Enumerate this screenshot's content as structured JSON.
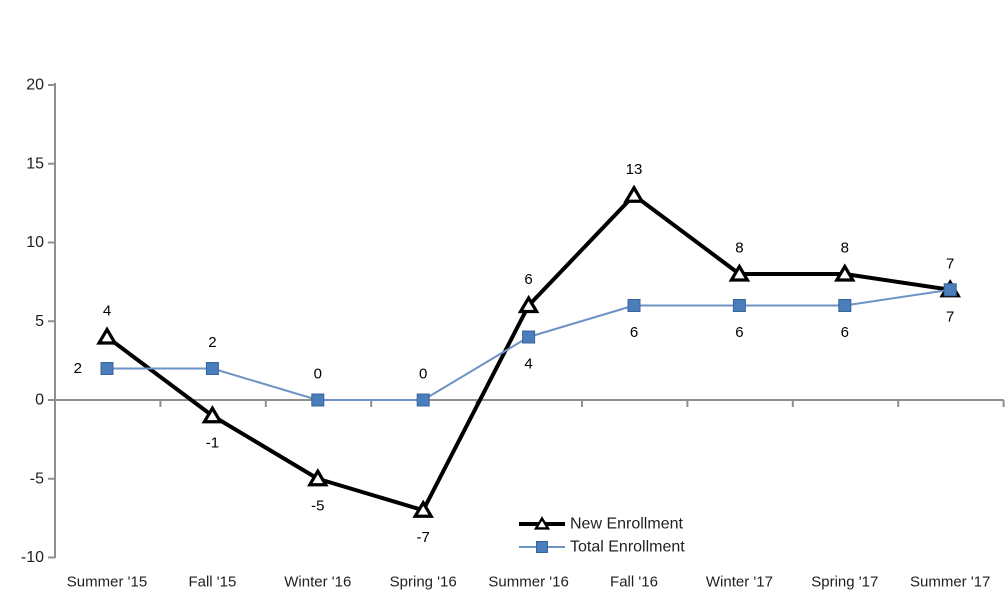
{
  "chart_data": {
    "type": "line",
    "categories": [
      "Summer '15",
      "Fall '15",
      "Winter '16",
      "Spring '16",
      "Summer '16",
      "Fall '16",
      "Winter '17",
      "Spring '17",
      "Summer '17"
    ],
    "series": [
      {
        "name": "New Enrollment",
        "values": [
          4,
          -1,
          -5,
          -7,
          6,
          13,
          8,
          8,
          7
        ],
        "data_labels": [
          "4",
          "-1",
          "-5",
          "-7",
          "6",
          "13",
          "8",
          "8",
          "7"
        ],
        "label_positions": [
          "above",
          "below",
          "below",
          "below",
          "above",
          "above",
          "above",
          "above",
          "above"
        ],
        "line_color": "#000000",
        "line_width": 4,
        "marker": "triangle",
        "marker_fill": "#ffffff",
        "marker_stroke": "#000000"
      },
      {
        "name": "Total Enrollment",
        "values": [
          2,
          2,
          0,
          0,
          4,
          6,
          6,
          6,
          7
        ],
        "data_labels": [
          "2",
          "2",
          "0",
          "0",
          "4",
          "6",
          "6",
          "6",
          "7"
        ],
        "label_positions": [
          "left",
          "above",
          "above",
          "above",
          "below",
          "below",
          "below",
          "below",
          "below"
        ],
        "line_color": "#6d92c4",
        "line_width": 2,
        "marker": "square",
        "marker_fill": "#4a7ebb",
        "marker_stroke": "#38639d"
      }
    ],
    "yticks": [
      20,
      15,
      10,
      5,
      0,
      -5,
      -10
    ],
    "ytick_labels": [
      "20",
      "15",
      "10",
      "5",
      "0",
      "-5",
      "-10"
    ],
    "ylim": [
      -10,
      20
    ],
    "grid": false,
    "axis_color": "#8f8f8f",
    "text_color": "#1f1f1f",
    "legend": {
      "position": "inside-bottom-center",
      "entries": [
        "New Enrollment",
        "Total Enrollment"
      ]
    }
  }
}
